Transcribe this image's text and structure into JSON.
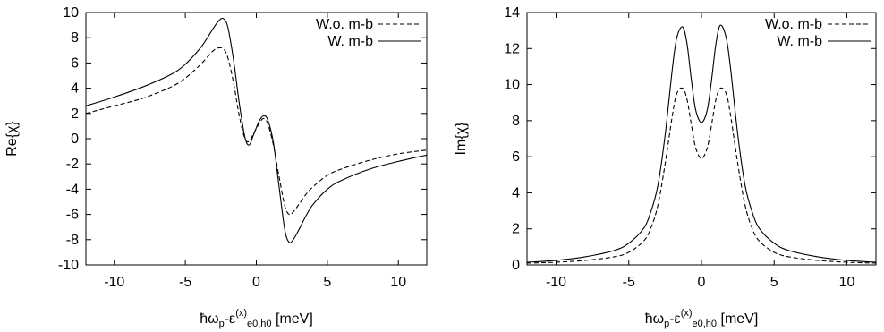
{
  "chart_data": [
    {
      "type": "line",
      "ylabel": "Re{χ}",
      "xlabel": "ħω",
      "xlabel_sub": "p",
      "xlabel_mid": "-ε",
      "xlabel_sup": "(x)",
      "xlabel_sub2": "e0,h0",
      "xlabel_unit": " [meV]",
      "xlim": [
        -12,
        12
      ],
      "ylim": [
        -10,
        10
      ],
      "xticks": [
        -10,
        -5,
        0,
        5,
        10
      ],
      "yticks": [
        -10,
        -8,
        -6,
        -4,
        -2,
        0,
        2,
        4,
        6,
        8,
        10
      ],
      "legend_position": "top-right",
      "series": [
        {
          "name": "W.o. m-b",
          "style": "dashed",
          "x": [
            -12,
            -10,
            -8,
            -6,
            -5,
            -4,
            -3.5,
            -3,
            -2.6,
            -2.3,
            -2,
            -1.6,
            -1.2,
            -0.8,
            -0.5,
            -0.2,
            0.2,
            0.5,
            0.8,
            1.2,
            1.6,
            2,
            2.3,
            2.6,
            3,
            3.5,
            4,
            5,
            6,
            8,
            10,
            12
          ],
          "y": [
            2.0,
            2.6,
            3.2,
            4.1,
            4.8,
            5.8,
            6.4,
            7.0,
            7.2,
            7.1,
            6.4,
            4.4,
            1.8,
            0.0,
            -0.2,
            0.4,
            1.2,
            1.6,
            1.2,
            -0.5,
            -3.0,
            -5.3,
            -6.0,
            -5.8,
            -5.2,
            -4.4,
            -3.8,
            -2.9,
            -2.4,
            -1.7,
            -1.2,
            -0.9
          ]
        },
        {
          "name": "W. m-b",
          "style": "solid",
          "x": [
            -12,
            -10,
            -8,
            -6,
            -5,
            -4,
            -3.5,
            -3,
            -2.6,
            -2.3,
            -2,
            -1.6,
            -1.2,
            -0.8,
            -0.5,
            -0.2,
            0.2,
            0.5,
            0.8,
            1.2,
            1.6,
            2,
            2.3,
            2.6,
            3,
            3.5,
            4,
            5,
            6,
            8,
            10,
            12
          ],
          "y": [
            2.6,
            3.3,
            4.1,
            5.1,
            5.9,
            7.1,
            7.9,
            8.8,
            9.4,
            9.5,
            8.8,
            6.2,
            2.8,
            0.1,
            -0.5,
            0.3,
            1.4,
            1.8,
            1.5,
            -0.3,
            -3.8,
            -7.2,
            -8.2,
            -8.0,
            -7.2,
            -6.1,
            -5.2,
            -4.0,
            -3.3,
            -2.4,
            -1.8,
            -1.3
          ]
        }
      ]
    },
    {
      "type": "line",
      "ylabel": "Im{χ}",
      "xlabel": "ħω",
      "xlabel_sub": "p",
      "xlabel_mid": "-ε",
      "xlabel_sup": "(x)",
      "xlabel_sub2": "e0,h0",
      "xlabel_unit": " [meV]",
      "xlim": [
        -12,
        12
      ],
      "ylim": [
        0,
        14
      ],
      "xticks": [
        -10,
        -5,
        0,
        5,
        10
      ],
      "yticks": [
        0,
        2,
        4,
        6,
        8,
        10,
        12,
        14
      ],
      "legend_position": "top-right",
      "series": [
        {
          "name": "W.o. m-b",
          "style": "dashed",
          "x": [
            -12,
            -10,
            -8,
            -6,
            -5,
            -4,
            -3.5,
            -3,
            -2.5,
            -2,
            -1.7,
            -1.3,
            -1,
            -0.7,
            -0.4,
            0,
            0.4,
            0.7,
            1,
            1.3,
            1.7,
            2,
            2.5,
            3,
            3.5,
            4,
            5,
            6,
            8,
            10,
            12
          ],
          "y": [
            0.1,
            0.15,
            0.25,
            0.45,
            0.7,
            1.3,
            2.0,
            3.3,
            5.6,
            8.3,
            9.5,
            9.8,
            9.2,
            7.8,
            6.5,
            5.9,
            6.5,
            7.8,
            9.2,
            9.8,
            9.5,
            8.3,
            5.6,
            3.3,
            2.0,
            1.3,
            0.7,
            0.45,
            0.25,
            0.15,
            0.1
          ]
        },
        {
          "name": "W. m-b",
          "style": "solid",
          "x": [
            -12,
            -10,
            -8,
            -6,
            -5,
            -4,
            -3.5,
            -3,
            -2.5,
            -2,
            -1.7,
            -1.3,
            -1,
            -0.7,
            -0.4,
            0,
            0.4,
            0.7,
            1,
            1.3,
            1.7,
            2,
            2.5,
            3,
            3.5,
            4,
            5,
            6,
            8,
            10,
            12
          ],
          "y": [
            0.15,
            0.25,
            0.45,
            0.8,
            1.2,
            2.0,
            2.9,
            4.4,
            7.2,
            10.9,
            12.6,
            13.2,
            12.3,
            10.3,
            8.6,
            7.9,
            8.6,
            10.3,
            12.3,
            13.3,
            12.6,
            10.9,
            7.2,
            4.4,
            2.9,
            2.0,
            1.2,
            0.8,
            0.45,
            0.25,
            0.15
          ]
        }
      ]
    }
  ]
}
